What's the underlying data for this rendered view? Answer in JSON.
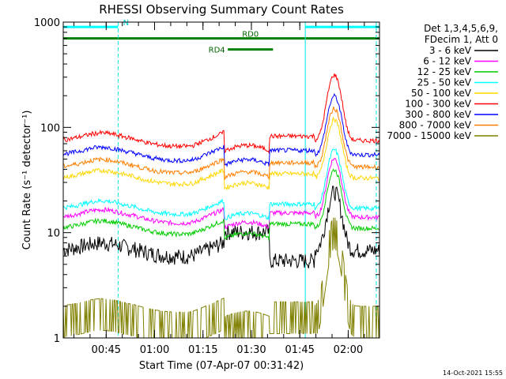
{
  "chart_data": {
    "type": "line",
    "title": "RHESSI Observing Summary Count Rates",
    "xlabel": "Start Time (07-Apr-07 00:31:42)",
    "ylabel": "Count Rate (s⁻¹ detector⁻¹)",
    "yscale": "log",
    "ylim": [
      1,
      1000
    ],
    "xlim_minutes": [
      0,
      98
    ],
    "x_ticks": [
      {
        "label": "00:45",
        "minute": 13.3
      },
      {
        "label": "01:00",
        "minute": 28.3
      },
      {
        "label": "01:15",
        "minute": 43.3
      },
      {
        "label": "01:30",
        "minute": 58.3
      },
      {
        "label": "01:45",
        "minute": 73.3
      },
      {
        "label": "02:00",
        "minute": 88.3
      }
    ],
    "y_ticks": [
      {
        "label": "1",
        "value": 1
      },
      {
        "label": "10",
        "value": 10
      },
      {
        "label": "100",
        "value": 100
      },
      {
        "label": "1000",
        "value": 1000
      }
    ],
    "legend_header": [
      "Det 1,3,4,5,6,9,",
      "FDecim 1, Att 0"
    ],
    "legend_position": "right",
    "series": [
      {
        "name": "3 - 6 keV",
        "color": "#000000",
        "base": 6.8
      },
      {
        "name": "6 - 12 keV",
        "color": "#ff00ff",
        "base": 14
      },
      {
        "name": "12 - 25 keV",
        "color": "#00cc00",
        "base": 11
      },
      {
        "name": "25 - 50 keV",
        "color": "#00ffff",
        "base": 17
      },
      {
        "name": "50 - 100 keV",
        "color": "#ffd700",
        "base": 33
      },
      {
        "name": "100 - 300 keV",
        "color": "#ff0000",
        "base": 75
      },
      {
        "name": "300 - 800 keV",
        "color": "#0000ff",
        "base": 55
      },
      {
        "name": "800 - 7000 keV",
        "color": "#ff7f00",
        "base": 42
      },
      {
        "name": "7000 - 15000 keV",
        "color": "#808000",
        "base": 1.6
      }
    ],
    "bars": [
      {
        "label": "N",
        "color": "#00ffff",
        "segments": [
          [
            0,
            17
          ],
          [
            75,
            98
          ]
        ],
        "value": 900
      },
      {
        "label": "RD0",
        "color": "#008000",
        "segments": [
          [
            0,
            98
          ]
        ],
        "value": 700
      },
      {
        "label": "RD4",
        "color": "#008000",
        "segments": [
          [
            51,
            65
          ]
        ],
        "value": 550
      }
    ],
    "vertical_markers_minutes": [
      17,
      75,
      97
    ],
    "footer": "14-Oct-2021 15:55"
  }
}
